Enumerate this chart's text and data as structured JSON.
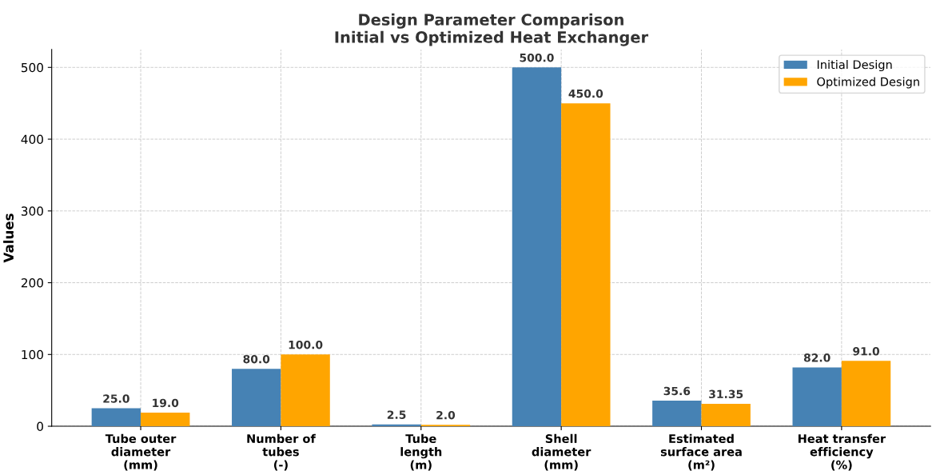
{
  "chart_data": {
    "type": "bar",
    "title": "Design Parameter Comparison\nInitial vs Optimized Heat Exchanger",
    "ylabel": "Values",
    "categories": [
      "Tube outer\ndiameter\n(mm)",
      "Number of\ntubes\n(-)",
      "Tube\nlength\n(m)",
      "Shell\ndiameter\n(mm)",
      "Estimated\nsurface area\n(m²)",
      "Heat transfer\nefficiency\n(%)"
    ],
    "series": [
      {
        "name": "Initial Design",
        "color": "#4682b4",
        "values": [
          25.0,
          80.0,
          2.5,
          500.0,
          35.6,
          82.0
        ],
        "value_labels": [
          "25.0",
          "80.0",
          "2.5",
          "500.0",
          "35.6",
          "82.0"
        ]
      },
      {
        "name": "Optimized Design",
        "color": "#ffa500",
        "values": [
          19.0,
          100.0,
          2.0,
          450.0,
          31.35,
          91.0
        ],
        "value_labels": [
          "19.0",
          "100.0",
          "2.0",
          "450.0",
          "31.35",
          "91.0"
        ]
      }
    ],
    "ylim": [
      0,
      525
    ],
    "yticks": [
      0,
      100,
      200,
      300,
      400,
      500
    ],
    "grid": true,
    "legend": "top right"
  }
}
